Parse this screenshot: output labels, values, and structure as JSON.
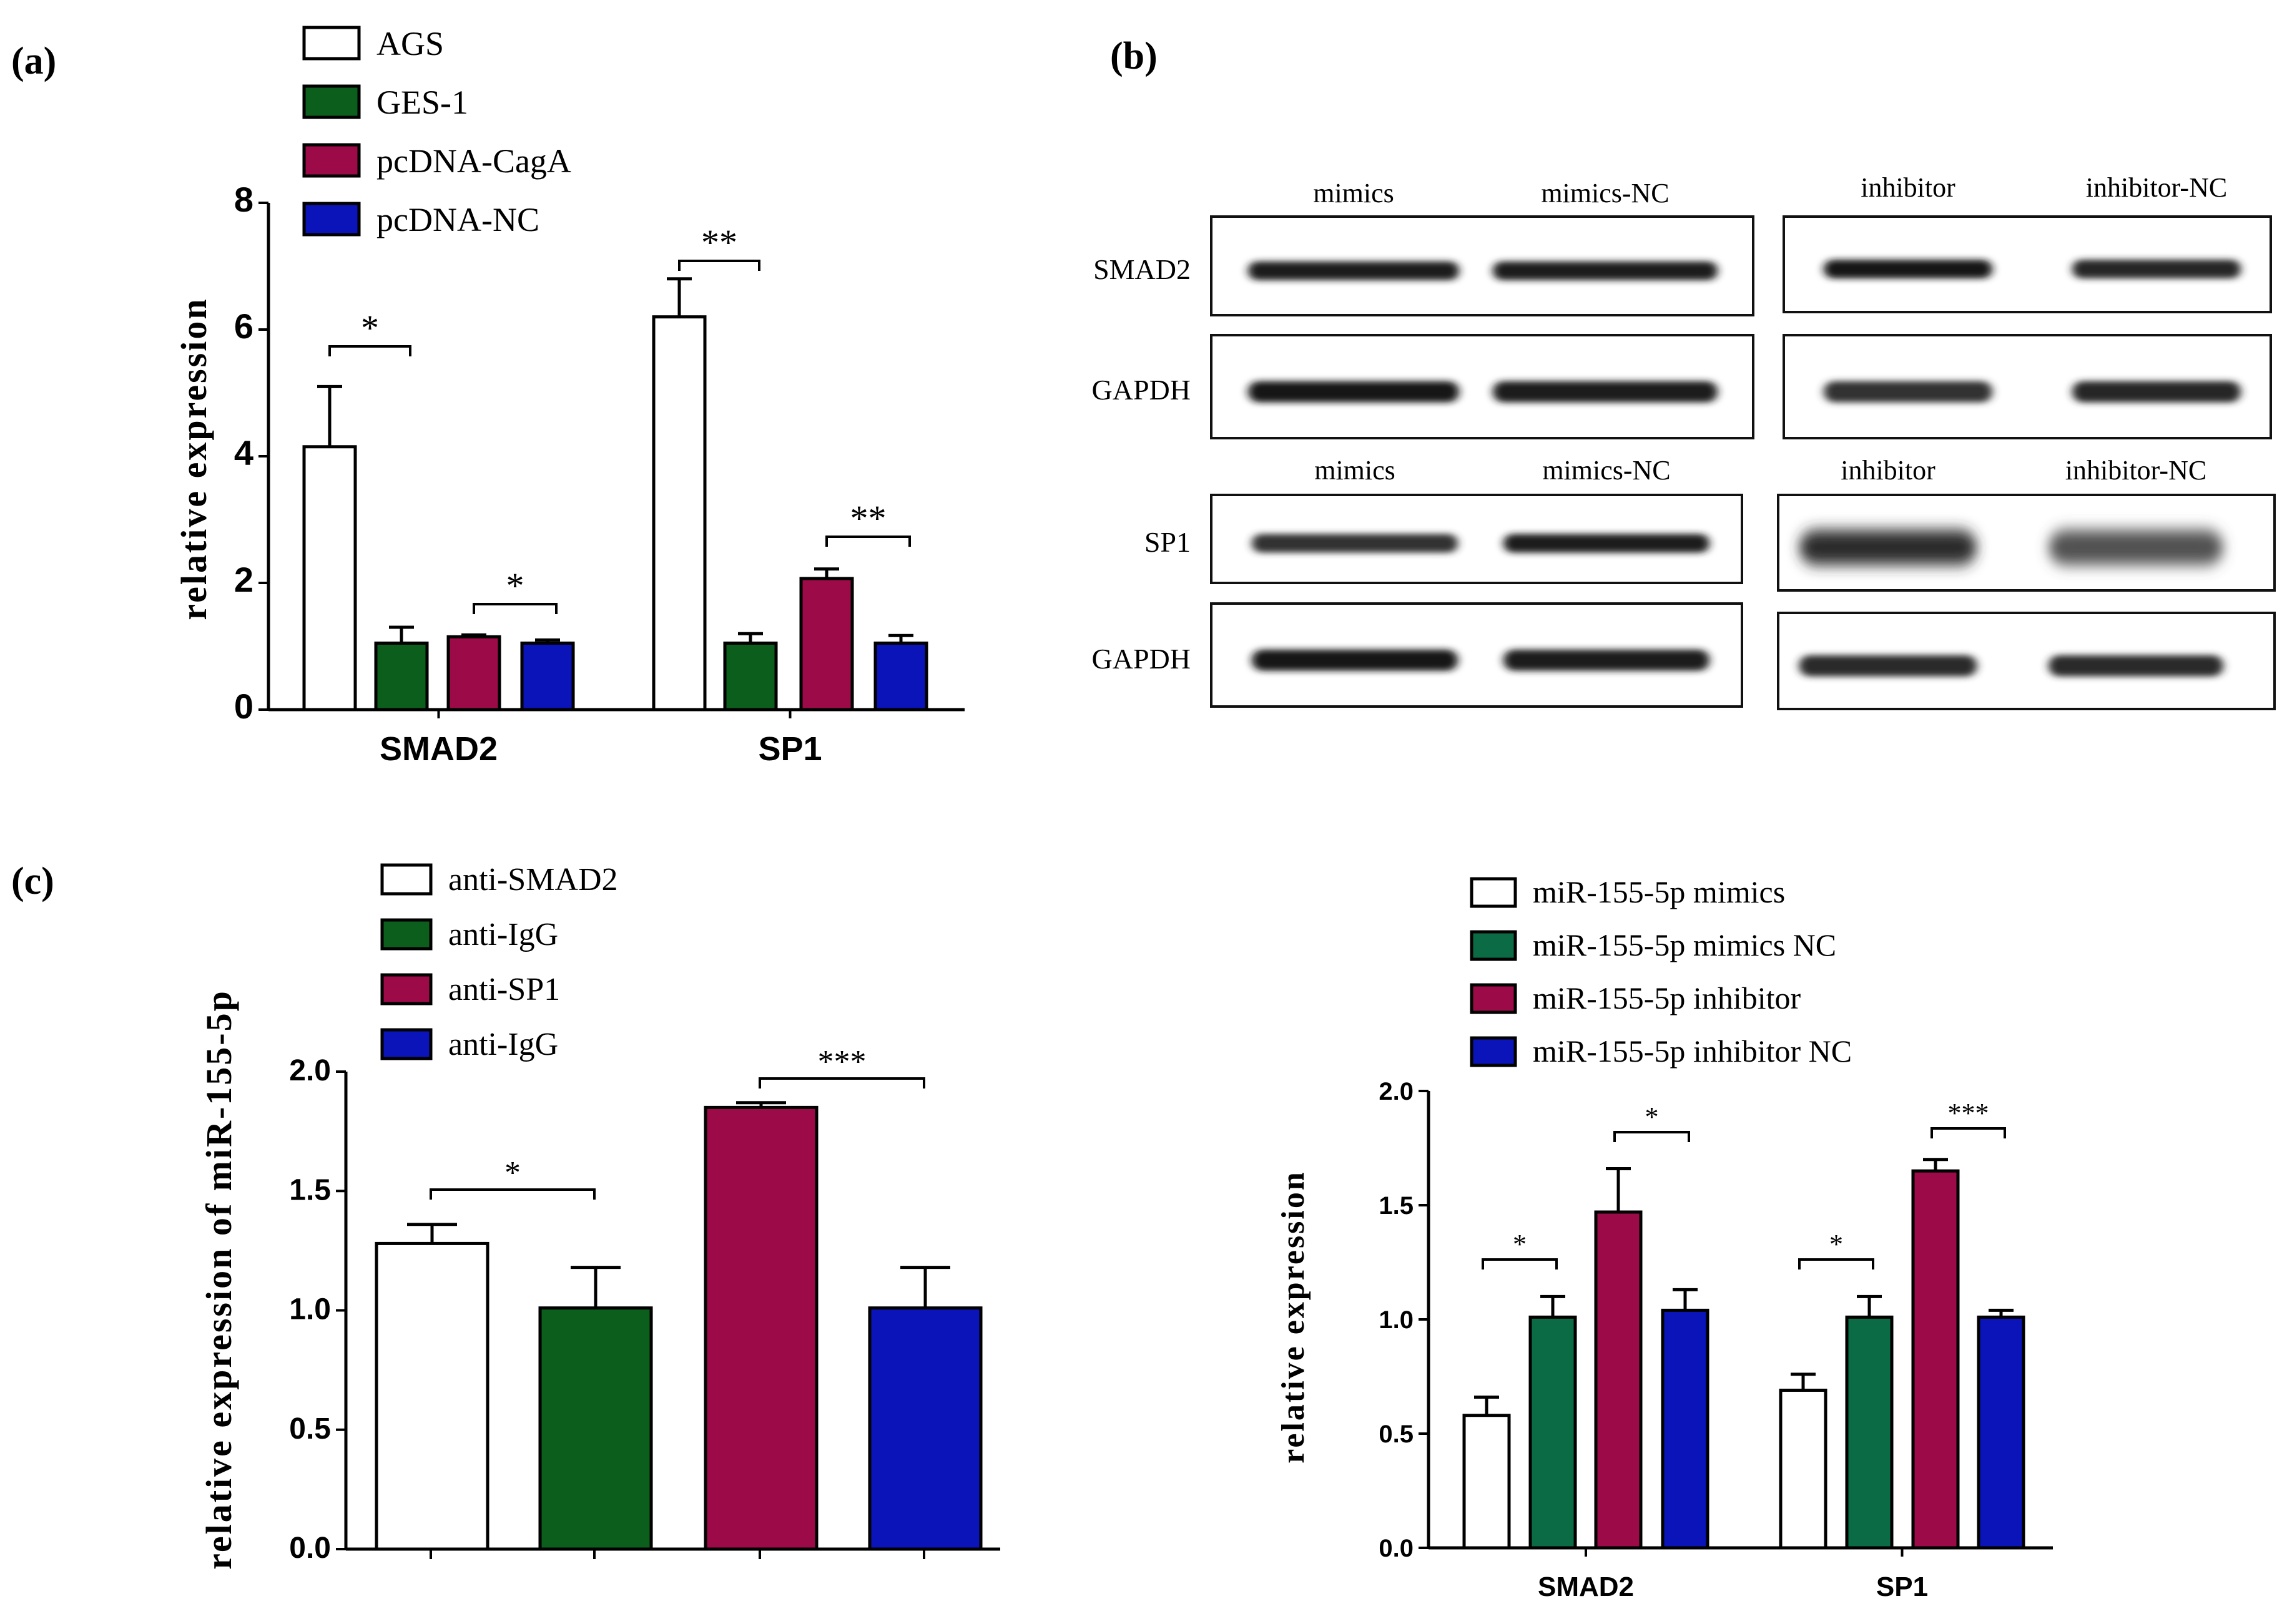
{
  "panels": {
    "a": "(a)",
    "b": "(b)",
    "c": "(c)"
  },
  "colors": {
    "white": "#ffffff",
    "green": "#0b5e1c",
    "magenta": "#9c0a47",
    "blue": "#0a14b8",
    "teal": "#0b6b45",
    "outline": "#000000"
  },
  "chart_data": [
    {
      "id": "a",
      "type": "bar",
      "categories": [
        "SMAD2",
        "SP1"
      ],
      "series": [
        {
          "name": "AGS",
          "color": "white",
          "values": [
            4.15,
            6.2
          ],
          "errors": [
            0.95,
            0.6
          ]
        },
        {
          "name": "GES-1",
          "color": "green",
          "values": [
            1.05,
            1.05
          ],
          "errors": [
            0.25,
            0.15
          ]
        },
        {
          "name": "pcDNA-CagA",
          "color": "magenta",
          "values": [
            1.15,
            2.07
          ],
          "errors": [
            0.03,
            0.15
          ]
        },
        {
          "name": "pcDNA-NC",
          "color": "blue",
          "values": [
            1.05,
            1.05
          ],
          "errors": [
            0.05,
            0.12
          ]
        }
      ],
      "ylim": [
        0,
        8
      ],
      "yticks": [
        "0",
        "2",
        "4",
        "6",
        "8"
      ],
      "ylabel": "relative expression",
      "xlabel": "",
      "legend": "top-left",
      "significance": [
        {
          "category": 0,
          "from": 0,
          "to": 1,
          "label": "*"
        },
        {
          "category": 0,
          "from": 2,
          "to": 3,
          "label": "*"
        },
        {
          "category": 1,
          "from": 0,
          "to": 1,
          "label": "**"
        },
        {
          "category": 1,
          "from": 2,
          "to": 3,
          "label": "**"
        }
      ]
    },
    {
      "id": "c1",
      "type": "bar",
      "categories": [
        "anti-SMAD2",
        "anti-IgG",
        "anti-SP1",
        "anti-IgG"
      ],
      "series": [
        {
          "name": "anti-SMAD2",
          "color": "white",
          "value": 1.28,
          "error": 0.08
        },
        {
          "name": "anti-IgG",
          "color": "green",
          "value": 1.01,
          "error": 0.17
        },
        {
          "name": "anti-SP1",
          "color": "magenta",
          "value": 1.85,
          "error": 0.02
        },
        {
          "name": "anti-IgG",
          "color": "blue",
          "value": 1.01,
          "error": 0.17
        }
      ],
      "ylim": [
        0,
        2.0
      ],
      "yticks": [
        "0.0",
        "0.5",
        "1.0",
        "1.5",
        "2.0"
      ],
      "ylabel": "relative expression of miR-155-5p",
      "xlabel": "",
      "legend": "top-left",
      "significance": [
        {
          "from": 0,
          "to": 1,
          "label": "*"
        },
        {
          "from": 2,
          "to": 3,
          "label": "***"
        }
      ]
    },
    {
      "id": "c2",
      "type": "bar",
      "categories": [
        "SMAD2",
        "SP1"
      ],
      "series": [
        {
          "name": "miR-155-5p mimics",
          "color": "white",
          "values": [
            0.58,
            0.69
          ],
          "errors": [
            0.08,
            0.07
          ]
        },
        {
          "name": "miR-155-5p mimics NC",
          "color": "teal",
          "values": [
            1.01,
            1.01
          ],
          "errors": [
            0.09,
            0.09
          ]
        },
        {
          "name": "miR-155-5p inhibitor",
          "color": "magenta",
          "values": [
            1.47,
            1.65
          ],
          "errors": [
            0.19,
            0.05
          ]
        },
        {
          "name": "miR-155-5p inhibitor NC",
          "color": "blue",
          "values": [
            1.04,
            1.01
          ],
          "errors": [
            0.09,
            0.03
          ]
        }
      ],
      "ylim": [
        0,
        2.0
      ],
      "yticks": [
        "0.0",
        "0.5",
        "1.0",
        "1.5",
        "2.0"
      ],
      "ylabel": "relative expression",
      "xlabel": "",
      "legend": "top",
      "significance": [
        {
          "category": 0,
          "from": 0,
          "to": 1,
          "label": "*"
        },
        {
          "category": 0,
          "from": 2,
          "to": 3,
          "label": "*"
        },
        {
          "category": 1,
          "from": 0,
          "to": 1,
          "label": "*"
        },
        {
          "category": 1,
          "from": 2,
          "to": 3,
          "label": "***"
        }
      ]
    }
  ],
  "western_blot": {
    "blocks": [
      {
        "lanes": [
          "mimics",
          "mimics-NC"
        ],
        "rows": [
          {
            "label": "SMAD2",
            "intensity": [
              0.9,
              0.95
            ]
          },
          {
            "label": "GAPDH",
            "intensity": [
              1.0,
              0.9
            ]
          }
        ]
      },
      {
        "lanes": [
          "inhibitor",
          "inhibitor-NC"
        ],
        "rows": [
          {
            "label": "SMAD2",
            "intensity": [
              1.0,
              0.85
            ]
          },
          {
            "label": "GAPDH",
            "intensity": [
              0.75,
              0.85
            ]
          }
        ]
      },
      {
        "lanes": [
          "mimics",
          "mimics-NC"
        ],
        "rows": [
          {
            "label": "SP1",
            "intensity": [
              0.75,
              0.95
            ]
          },
          {
            "label": "GAPDH",
            "intensity": [
              1.0,
              0.9
            ]
          }
        ]
      },
      {
        "lanes": [
          "inhibitor",
          "inhibitor-NC"
        ],
        "rows": [
          {
            "label": "SP1",
            "intensity": [
              0.8,
              0.45
            ]
          },
          {
            "label": "GAPDH",
            "intensity": [
              0.8,
              0.8
            ]
          }
        ]
      }
    ]
  }
}
